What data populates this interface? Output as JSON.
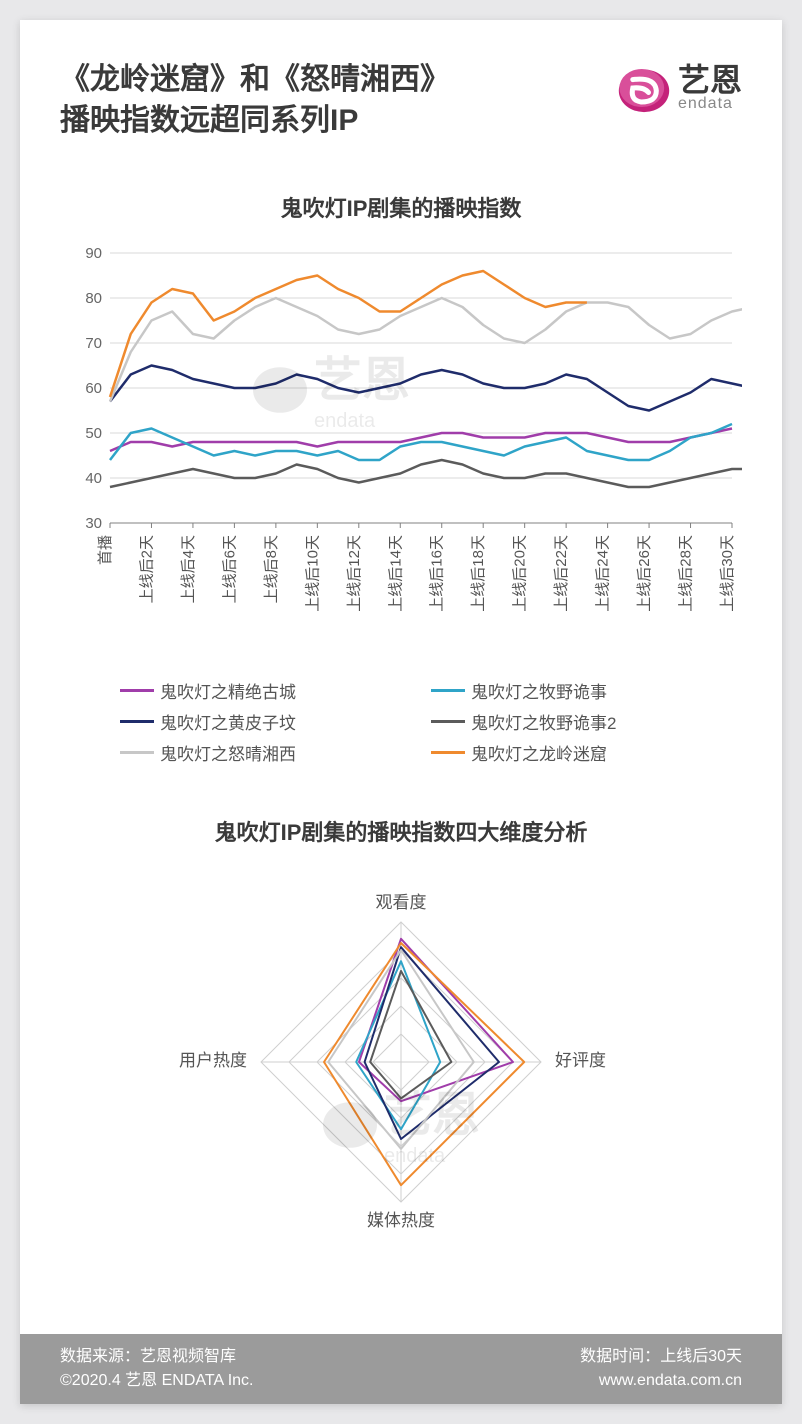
{
  "header": {
    "title_line1": "《龙岭迷窟》和《怒晴湘西》",
    "title_line2": "播映指数远超同系列IP",
    "logo_cn": "艺恩",
    "logo_en": "endata",
    "logo_fill": "#c4227a",
    "logo_fill2": "#d94f9a"
  },
  "line_chart": {
    "title": "鬼吹灯IP剧集的播映指数",
    "type": "line",
    "ylim": [
      30,
      90
    ],
    "yticks": [
      30,
      40,
      50,
      60,
      70,
      80,
      90
    ],
    "grid_color": "#d9d9d9",
    "axis_color": "#808080",
    "background": "#ffffff",
    "label_fontsize": 16,
    "tick_fontsize": 15,
    "x_rotation": 90,
    "categories": [
      "首播",
      "上线后2天",
      "上线后4天",
      "上线后6天",
      "上线后8天",
      "上线后10天",
      "上线后12天",
      "上线后14天",
      "上线后16天",
      "上线后18天",
      "上线后20天",
      "上线后22天",
      "上线后24天",
      "上线后26天",
      "上线后28天",
      "上线后30天"
    ],
    "x_every": 2,
    "series": [
      {
        "name": "鬼吹灯之精绝古城",
        "color": "#a03daa",
        "width": 2.5,
        "values": [
          46,
          48,
          48,
          47,
          48,
          48,
          48,
          48,
          48,
          48,
          47,
          48,
          48,
          48,
          48,
          49,
          50,
          50,
          49,
          49,
          49,
          50,
          50,
          50,
          49,
          48,
          48,
          48,
          49,
          50,
          51
        ]
      },
      {
        "name": "鬼吹灯之牧野诡事",
        "color": "#2fa4c8",
        "width": 2.5,
        "values": [
          44,
          50,
          51,
          49,
          47,
          45,
          46,
          45,
          46,
          46,
          45,
          46,
          44,
          44,
          47,
          48,
          48,
          47,
          46,
          45,
          47,
          48,
          49,
          46,
          45,
          44,
          44,
          46,
          49,
          50,
          52
        ]
      },
      {
        "name": "鬼吹灯之黄皮子坟",
        "color": "#1f2c6b",
        "width": 2.5,
        "values": [
          57,
          63,
          65,
          64,
          62,
          61,
          60,
          60,
          61,
          63,
          62,
          60,
          59,
          60,
          61,
          63,
          64,
          63,
          61,
          60,
          60,
          61,
          63,
          62,
          59,
          56,
          55,
          57,
          59,
          62,
          61,
          60
        ]
      },
      {
        "name": "鬼吹灯之牧野诡事2",
        "color": "#5b5b5b",
        "width": 2.5,
        "values": [
          38,
          39,
          40,
          41,
          42,
          41,
          40,
          40,
          41,
          43,
          42,
          40,
          39,
          40,
          41,
          43,
          44,
          43,
          41,
          40,
          40,
          41,
          41,
          40,
          39,
          38,
          38,
          39,
          40,
          41,
          42,
          42
        ]
      },
      {
        "name": "鬼吹灯之怒晴湘西",
        "color": "#c7c7c7",
        "width": 2.5,
        "values": [
          57,
          68,
          75,
          77,
          72,
          71,
          75,
          78,
          80,
          78,
          76,
          73,
          72,
          73,
          76,
          78,
          80,
          78,
          74,
          71,
          70,
          73,
          77,
          79,
          79,
          78,
          74,
          71,
          72,
          75,
          77,
          78
        ]
      },
      {
        "name": "鬼吹灯之龙岭迷窟",
        "color": "#ef8a2e",
        "width": 2.5,
        "values": [
          58,
          72,
          79,
          82,
          81,
          75,
          77,
          80,
          82,
          84,
          85,
          82,
          80,
          77,
          77,
          80,
          83,
          85,
          86,
          83,
          80,
          78,
          79,
          79
        ]
      }
    ]
  },
  "radar_chart": {
    "title": "鬼吹灯IP剧集的播映指数四大维度分析",
    "type": "radar",
    "axes": [
      "观看度",
      "好评度",
      "媒体热度",
      "用户热度"
    ],
    "rings": 5,
    "max": 100,
    "grid_color": "#cfcfcf",
    "label_fontsize": 17,
    "series": [
      {
        "name": "鬼吹灯之精绝古城",
        "color": "#a03daa",
        "width": 2,
        "values": [
          88,
          80,
          28,
          30
        ]
      },
      {
        "name": "鬼吹灯之牧野诡事",
        "color": "#2fa4c8",
        "width": 2,
        "values": [
          72,
          28,
          48,
          32
        ]
      },
      {
        "name": "鬼吹灯之黄皮子坟",
        "color": "#1f2c6b",
        "width": 2,
        "values": [
          82,
          70,
          55,
          26
        ]
      },
      {
        "name": "鬼吹灯之牧野诡事2",
        "color": "#5b5b5b",
        "width": 2,
        "values": [
          65,
          36,
          26,
          22
        ]
      },
      {
        "name": "鬼吹灯之怒晴湘西",
        "color": "#c7c7c7",
        "width": 2,
        "values": [
          80,
          52,
          62,
          52
        ]
      },
      {
        "name": "鬼吹灯之龙岭迷窟",
        "color": "#ef8a2e",
        "width": 2,
        "values": [
          85,
          88,
          88,
          55
        ]
      }
    ]
  },
  "footer": {
    "source_label": "数据来源：",
    "source_value": "艺恩视频智库",
    "time_label": "数据时间：",
    "time_value": "上线后30天",
    "copyright": "©2020.4  艺恩 ENDATA Inc.",
    "url": "www.endata.com.cn"
  },
  "watermark": {
    "cn": "艺恩",
    "en": "endata"
  }
}
